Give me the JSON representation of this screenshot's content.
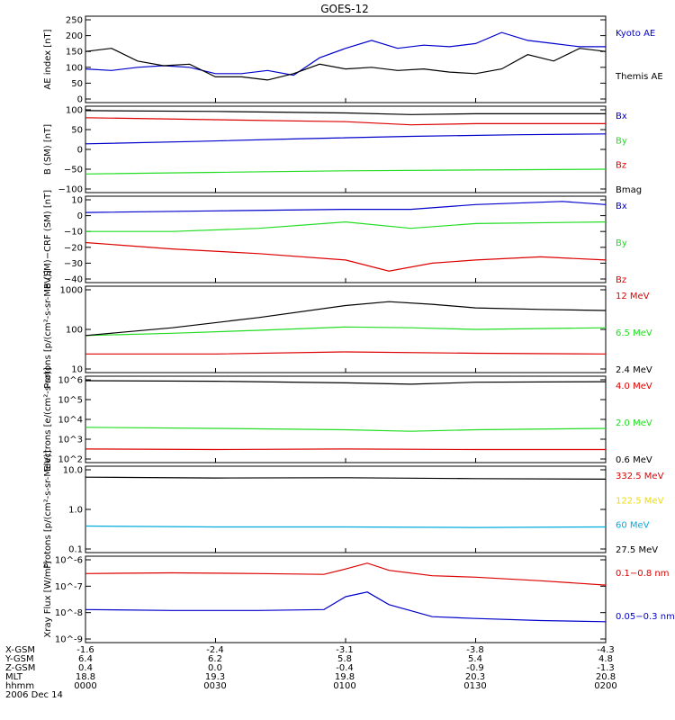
{
  "title": "GOES-12",
  "colors": {
    "black": "#000000",
    "red": "#dd0000",
    "green": "#22dd22",
    "blue": "#0000cc",
    "yellow": "#eedd00",
    "cyan": "#00aadd"
  },
  "time_axis": {
    "rows": [
      {
        "label": "X-GSM",
        "values": [
          "-1.6",
          "-2.4",
          "-3.1",
          "-3.8",
          "-4.3"
        ]
      },
      {
        "label": "Y-GSM",
        "values": [
          "6.4",
          "6.2",
          "5.8",
          "5.4",
          "4.8"
        ]
      },
      {
        "label": "Z-GSM",
        "values": [
          "0.4",
          "0.0",
          "-0.4",
          "-0.9",
          "-1.3"
        ]
      },
      {
        "label": "MLT",
        "values": [
          "18.8",
          "19.3",
          "19.8",
          "20.3",
          "20.8"
        ]
      },
      {
        "label": "hhmm",
        "values": [
          "0000",
          "0030",
          "0100",
          "0130",
          "0200"
        ]
      }
    ],
    "date": "2006 Dec 14"
  },
  "chart_data": [
    {
      "type": "line",
      "ylabel": "AE index [nT]",
      "ylim": [
        0,
        250
      ],
      "scale": "linear",
      "ticks": [
        "250",
        "200",
        "150",
        "100",
        "50",
        "0"
      ],
      "series": [
        {
          "name": "Kyoto AE",
          "color": "#0000cc",
          "x": [
            0,
            6,
            12,
            18,
            24,
            30,
            36,
            42,
            48,
            54,
            60,
            66,
            72,
            78,
            84,
            90,
            96,
            102,
            108,
            114,
            120
          ],
          "y": [
            95,
            90,
            100,
            105,
            100,
            80,
            80,
            90,
            75,
            130,
            160,
            185,
            160,
            170,
            165,
            175,
            210,
            185,
            175,
            165,
            165
          ]
        },
        {
          "name": "Themis AE",
          "color": "#000000",
          "x": [
            0,
            6,
            12,
            18,
            24,
            30,
            36,
            42,
            48,
            54,
            60,
            66,
            72,
            78,
            84,
            90,
            96,
            102,
            108,
            114,
            120
          ],
          "y": [
            150,
            160,
            120,
            105,
            110,
            70,
            70,
            60,
            80,
            110,
            95,
            100,
            90,
            95,
            85,
            80,
            95,
            140,
            120,
            160,
            150
          ]
        }
      ]
    },
    {
      "type": "line",
      "ylabel": "B (SM) [nT]",
      "ylim": [
        -100,
        100
      ],
      "scale": "linear",
      "ticks": [
        "100",
        "50",
        "0",
        "−50",
        "−100"
      ],
      "series": [
        {
          "name": "Bx",
          "color": "#0000cc",
          "x": [
            0,
            25,
            50,
            75,
            100,
            120
          ],
          "y": [
            14,
            20,
            27,
            33,
            37,
            39
          ]
        },
        {
          "name": "By",
          "color": "#22dd22",
          "x": [
            0,
            30,
            60,
            90,
            120
          ],
          "y": [
            -62,
            -58,
            -54,
            -52,
            -50
          ]
        },
        {
          "name": "Bz",
          "color": "#dd0000",
          "x": [
            0,
            30,
            60,
            75,
            90,
            120
          ],
          "y": [
            80,
            75,
            70,
            62,
            65,
            65
          ]
        },
        {
          "name": "Bmag",
          "color": "#000000",
          "x": [
            0,
            30,
            60,
            75,
            90,
            120
          ],
          "y": [
            98,
            96,
            92,
            88,
            90,
            90
          ]
        }
      ]
    },
    {
      "type": "line",
      "ylabel": "B (SM)−CRF (SM) [nT]",
      "ylim": [
        -40,
        10
      ],
      "scale": "linear",
      "ticks": [
        "10",
        "0",
        "−10",
        "−20",
        "−30",
        "−40"
      ],
      "series": [
        {
          "name": "Bx",
          "color": "#0000cc",
          "x": [
            0,
            30,
            60,
            75,
            90,
            110,
            120
          ],
          "y": [
            2,
            3,
            4,
            4,
            7,
            9,
            7
          ]
        },
        {
          "name": "By",
          "color": "#22dd22",
          "x": [
            0,
            20,
            40,
            60,
            75,
            90,
            120
          ],
          "y": [
            -10,
            -10,
            -8,
            -4,
            -8,
            -5,
            -4
          ]
        },
        {
          "name": "Bz",
          "color": "#dd0000",
          "x": [
            0,
            20,
            40,
            60,
            70,
            80,
            90,
            105,
            120
          ],
          "y": [
            -17,
            -21,
            -24,
            -28,
            -35,
            -30,
            -28,
            -26,
            -28
          ]
        }
      ]
    },
    {
      "type": "line",
      "ylabel": "Protons [p/(cm²-s-sr-MeV)]",
      "ylim": [
        10,
        1000
      ],
      "scale": "log",
      "ticks": [
        "1000",
        "100",
        "10"
      ],
      "series": [
        {
          "name": "12 MeV",
          "color": "#dd0000",
          "x": [
            0,
            30,
            60,
            90,
            120
          ],
          "y": [
            24,
            24,
            27,
            25,
            24
          ]
        },
        {
          "name": "6.5 MeV",
          "color": "#22dd22",
          "x": [
            0,
            20,
            40,
            60,
            75,
            90,
            120
          ],
          "y": [
            70,
            80,
            95,
            115,
            110,
            100,
            110
          ]
        },
        {
          "name": "2.4 MeV",
          "color": "#000000",
          "x": [
            0,
            20,
            40,
            60,
            70,
            80,
            90,
            105,
            120
          ],
          "y": [
            70,
            110,
            200,
            400,
            500,
            430,
            350,
            320,
            300
          ]
        }
      ]
    },
    {
      "type": "line",
      "ylabel": "Electrons [e/(cm²-s-sr)]",
      "ylim": [
        100,
        1000000
      ],
      "scale": "log",
      "ticks": [
        "10^6",
        "10^5",
        "10^4",
        "10^3",
        "10^2"
      ],
      "series": [
        {
          "name": "4.0 MeV",
          "color": "#dd0000",
          "x": [
            0,
            30,
            60,
            90,
            120
          ],
          "y": [
            320,
            300,
            320,
            300,
            300
          ]
        },
        {
          "name": "2.0 MeV",
          "color": "#22dd22",
          "x": [
            0,
            30,
            60,
            75,
            90,
            120
          ],
          "y": [
            4000,
            3500,
            3000,
            2500,
            3000,
            3500
          ]
        },
        {
          "name": "0.6 MeV",
          "color": "#000000",
          "x": [
            0,
            30,
            60,
            75,
            90,
            120
          ],
          "y": [
            900000,
            850000,
            700000,
            600000,
            750000,
            800000
          ]
        }
      ]
    },
    {
      "type": "line",
      "ylabel": "Protons [p/(cm²-s-sr-MeV)]",
      "ylim": [
        0.1,
        10
      ],
      "scale": "log",
      "ticks": [
        "10.0",
        "1.0",
        "0.1"
      ],
      "series": [
        {
          "name": "332.5 MeV",
          "color": "#dd0000",
          "x": [],
          "y": []
        },
        {
          "name": "122.5 MeV",
          "color": "#eedd00",
          "x": [],
          "y": []
        },
        {
          "name": "60 MeV",
          "color": "#00aadd",
          "x": [
            0,
            30,
            60,
            90,
            120
          ],
          "y": [
            0.38,
            0.36,
            0.36,
            0.35,
            0.36
          ]
        },
        {
          "name": "27.5 MeV",
          "color": "#000000",
          "x": [
            0,
            30,
            60,
            90,
            120
          ],
          "y": [
            6.5,
            6.2,
            6.3,
            6.0,
            5.8
          ]
        }
      ]
    },
    {
      "type": "line",
      "ylabel": "Xray Flux [W/m²]",
      "ylim": [
        1e-09,
        1e-06
      ],
      "scale": "log",
      "ticks": [
        "10^-6",
        "10^-7",
        "10^-8",
        "10^-9"
      ],
      "series": [
        {
          "name": "0.1−0.8 nm",
          "color": "#dd0000",
          "x": [
            0,
            20,
            40,
            55,
            60,
            65,
            70,
            80,
            90,
            105,
            120
          ],
          "y": [
            3e-07,
            3.2e-07,
            3e-07,
            2.8e-07,
            4.5e-07,
            7.5e-07,
            4e-07,
            2.5e-07,
            2.2e-07,
            1.6e-07,
            1.1e-07
          ]
        },
        {
          "name": "0.05−0.3 nm",
          "color": "#0000cc",
          "x": [
            0,
            20,
            40,
            55,
            60,
            65,
            70,
            80,
            90,
            105,
            120
          ],
          "y": [
            1.3e-08,
            1.2e-08,
            1.2e-08,
            1.3e-08,
            4e-08,
            6e-08,
            2e-08,
            7e-09,
            6e-09,
            5e-09,
            4.5e-09
          ]
        }
      ]
    }
  ]
}
